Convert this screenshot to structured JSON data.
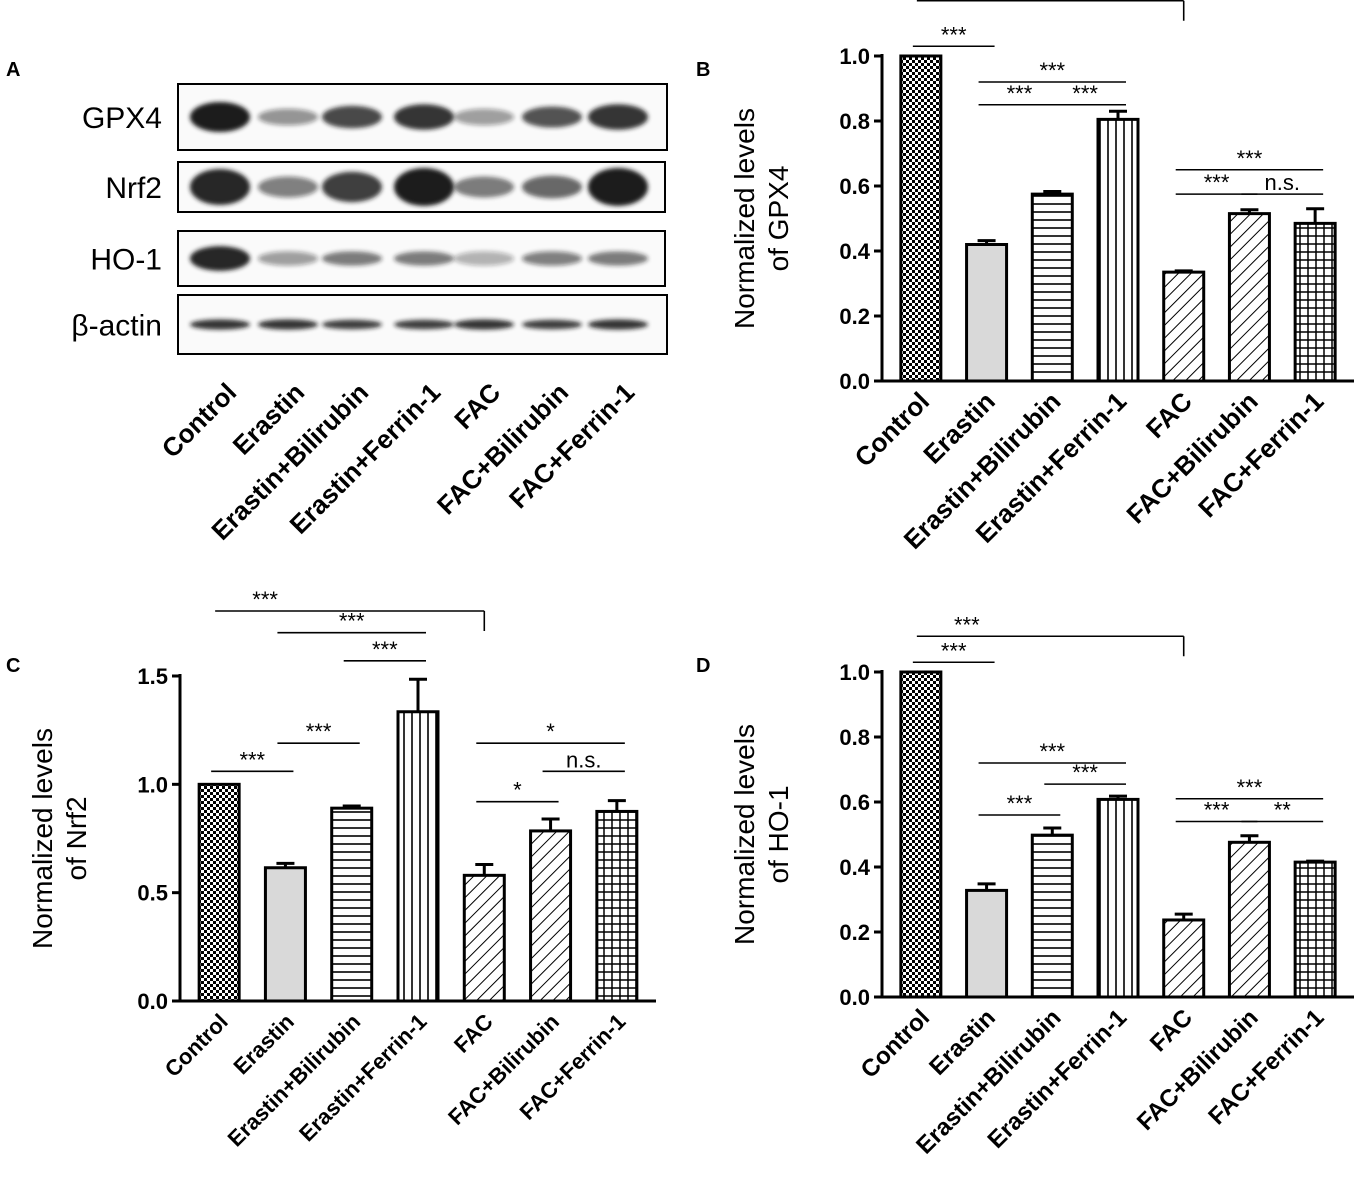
{
  "panel_labels": [
    "A",
    "B",
    "C",
    "D"
  ],
  "colors": {
    "ink": "#000000",
    "erastin_fill": "#d9d9d9",
    "blot_background": "#fafafa",
    "band": "#1a1a1a"
  },
  "western_blot": {
    "panel": "A",
    "rows": [
      {
        "label": "GPX4",
        "intensity": [
          1.0,
          0.35,
          0.75,
          0.85,
          0.3,
          0.7,
          0.85
        ]
      },
      {
        "label": "Nrf2",
        "intensity": [
          0.95,
          0.45,
          0.8,
          1.0,
          0.5,
          0.6,
          1.0
        ]
      },
      {
        "label": "HO-1",
        "intensity": [
          0.95,
          0.3,
          0.5,
          0.5,
          0.2,
          0.45,
          0.5
        ]
      },
      {
        "label": "β-actin",
        "intensity": [
          0.85,
          0.85,
          0.8,
          0.8,
          0.85,
          0.8,
          0.85
        ]
      }
    ],
    "lanes": [
      "Control",
      "Erastin",
      "Erastin+Bilirubin",
      "Erastin+Ferrin-1",
      "FAC",
      "FAC+Bilirubin",
      "FAC+Ferrin-1"
    ]
  },
  "chart_data": [
    {
      "panel": "B",
      "type": "bar",
      "title": "",
      "xlabel": "",
      "ylabel": "Normalized levels of GPX4",
      "ylabel_lines": [
        "Normalized levels",
        "of GPX4"
      ],
      "categories": [
        "Control",
        "Erastin",
        "Erastin+Bilirubin",
        "Erastin+Ferrin-1",
        "FAC",
        "FAC+Bilirubin",
        "FAC+Ferrin-1"
      ],
      "values": [
        1.0,
        0.42,
        0.575,
        0.805,
        0.335,
        0.515,
        0.485
      ],
      "errors": [
        0.0,
        0.012,
        0.008,
        0.025,
        0.004,
        0.012,
        0.045
      ],
      "patterns": [
        "checker",
        "solid",
        "hlines",
        "vlines",
        "diag",
        "diag",
        "grid"
      ],
      "ylim": [
        0,
        1.0
      ],
      "yticks": [
        "0.0",
        "0.2",
        "0.4",
        "0.6",
        "0.8",
        "1.0"
      ],
      "ytick_values": [
        0,
        0.2,
        0.4,
        0.6,
        0.8,
        1.0
      ],
      "significance": [
        {
          "from": "Control",
          "to": "FAC",
          "label": "***",
          "level": 1.17,
          "bracket": true
        },
        {
          "from": "Control",
          "to": "Erastin",
          "label": "***",
          "level": 1.03
        },
        {
          "from": "Erastin",
          "to": "Erastin+Ferrin-1",
          "label": "***",
          "level": 0.92
        },
        {
          "from": "Erastin",
          "to": "Erastin+Bilirubin",
          "label": "***",
          "level": 0.85
        },
        {
          "from": "Erastin+Bilirubin",
          "to": "Erastin+Ferrin-1",
          "label": "***",
          "level": 0.85
        },
        {
          "from": "FAC",
          "to": "FAC+Ferrin-1",
          "label": "***",
          "level": 0.65
        },
        {
          "from": "FAC",
          "to": "FAC+Bilirubin",
          "label": "***",
          "level": 0.575
        },
        {
          "from": "FAC+Bilirubin",
          "to": "FAC+Ferrin-1",
          "label": "n.s.",
          "level": 0.575
        }
      ]
    },
    {
      "panel": "C",
      "type": "bar",
      "title": "",
      "xlabel": "",
      "ylabel": "Normalized levels of Nrf2",
      "ylabel_lines": [
        "Normalized levels",
        "of Nrf2"
      ],
      "categories": [
        "Control",
        "Erastin",
        "Erastin+Bilirubin",
        "Erastin+Ferrin-1",
        "FAC",
        "FAC+Bilirubin",
        "FAC+Ferrin-1"
      ],
      "values": [
        1.0,
        0.615,
        0.89,
        1.335,
        0.58,
        0.785,
        0.875
      ],
      "errors": [
        0.0,
        0.02,
        0.01,
        0.15,
        0.05,
        0.055,
        0.05
      ],
      "patterns": [
        "checker",
        "solid",
        "hlines",
        "vlines",
        "diag",
        "diag",
        "grid"
      ],
      "ylim": [
        0,
        1.5
      ],
      "yticks": [
        "0.0",
        "0.5",
        "1.0",
        "1.5"
      ],
      "ytick_values": [
        0,
        0.5,
        1.0,
        1.5
      ],
      "significance": [
        {
          "from": "Control",
          "to": "FAC",
          "label": "***",
          "level": 1.8,
          "bracket": true
        },
        {
          "from": "Erastin",
          "to": "Erastin+Ferrin-1",
          "label": "***",
          "level": 1.7
        },
        {
          "from": "Erastin+Bilirubin",
          "to": "Erastin+Ferrin-1",
          "label": "***",
          "level": 1.57
        },
        {
          "from": "Erastin",
          "to": "Erastin+Bilirubin",
          "label": "***",
          "level": 1.19
        },
        {
          "from": "Control",
          "to": "Erastin",
          "label": "***",
          "level": 1.06
        },
        {
          "from": "FAC",
          "to": "FAC+Ferrin-1",
          "label": "*",
          "level": 1.19
        },
        {
          "from": "FAC+Bilirubin",
          "to": "FAC+Ferrin-1",
          "label": "n.s.",
          "level": 1.06
        },
        {
          "from": "FAC",
          "to": "FAC+Bilirubin",
          "label": "*",
          "level": 0.92
        }
      ]
    },
    {
      "panel": "D",
      "type": "bar",
      "title": "",
      "xlabel": "",
      "ylabel": "Normalized levels of HO-1",
      "ylabel_lines": [
        "Normalized levels",
        "of HO-1"
      ],
      "categories": [
        "Control",
        "Erastin",
        "Erastin+Bilirubin",
        "Erastin+Ferrin-1",
        "FAC",
        "FAC+Bilirubin",
        "FAC+Ferrin-1"
      ],
      "values": [
        1.0,
        0.328,
        0.498,
        0.608,
        0.237,
        0.476,
        0.415
      ],
      "errors": [
        0.0,
        0.02,
        0.022,
        0.01,
        0.018,
        0.02,
        0.003
      ],
      "patterns": [
        "checker",
        "solid",
        "hlines",
        "vlines",
        "diag",
        "diag",
        "grid"
      ],
      "ylim": [
        0,
        1.0
      ],
      "yticks": [
        "0.0",
        "0.2",
        "0.4",
        "0.6",
        "0.8",
        "1.0"
      ],
      "ytick_values": [
        0,
        0.2,
        0.4,
        0.6,
        0.8,
        1.0
      ],
      "significance": [
        {
          "from": "Control",
          "to": "FAC",
          "label": "***",
          "level": 1.11,
          "bracket": true
        },
        {
          "from": "Control",
          "to": "Erastin",
          "label": "***",
          "level": 1.03
        },
        {
          "from": "Erastin",
          "to": "Erastin+Ferrin-1",
          "label": "***",
          "level": 0.72
        },
        {
          "from": "Erastin+Bilirubin",
          "to": "Erastin+Ferrin-1",
          "label": "***",
          "level": 0.655
        },
        {
          "from": "Erastin",
          "to": "Erastin+Bilirubin",
          "label": "***",
          "level": 0.56
        },
        {
          "from": "FAC",
          "to": "FAC+Ferrin-1",
          "label": "***",
          "level": 0.61
        },
        {
          "from": "FAC",
          "to": "FAC+Bilirubin",
          "label": "***",
          "level": 0.54
        },
        {
          "from": "FAC+Bilirubin",
          "to": "FAC+Ferrin-1",
          "label": "**",
          "level": 0.54
        }
      ]
    }
  ]
}
